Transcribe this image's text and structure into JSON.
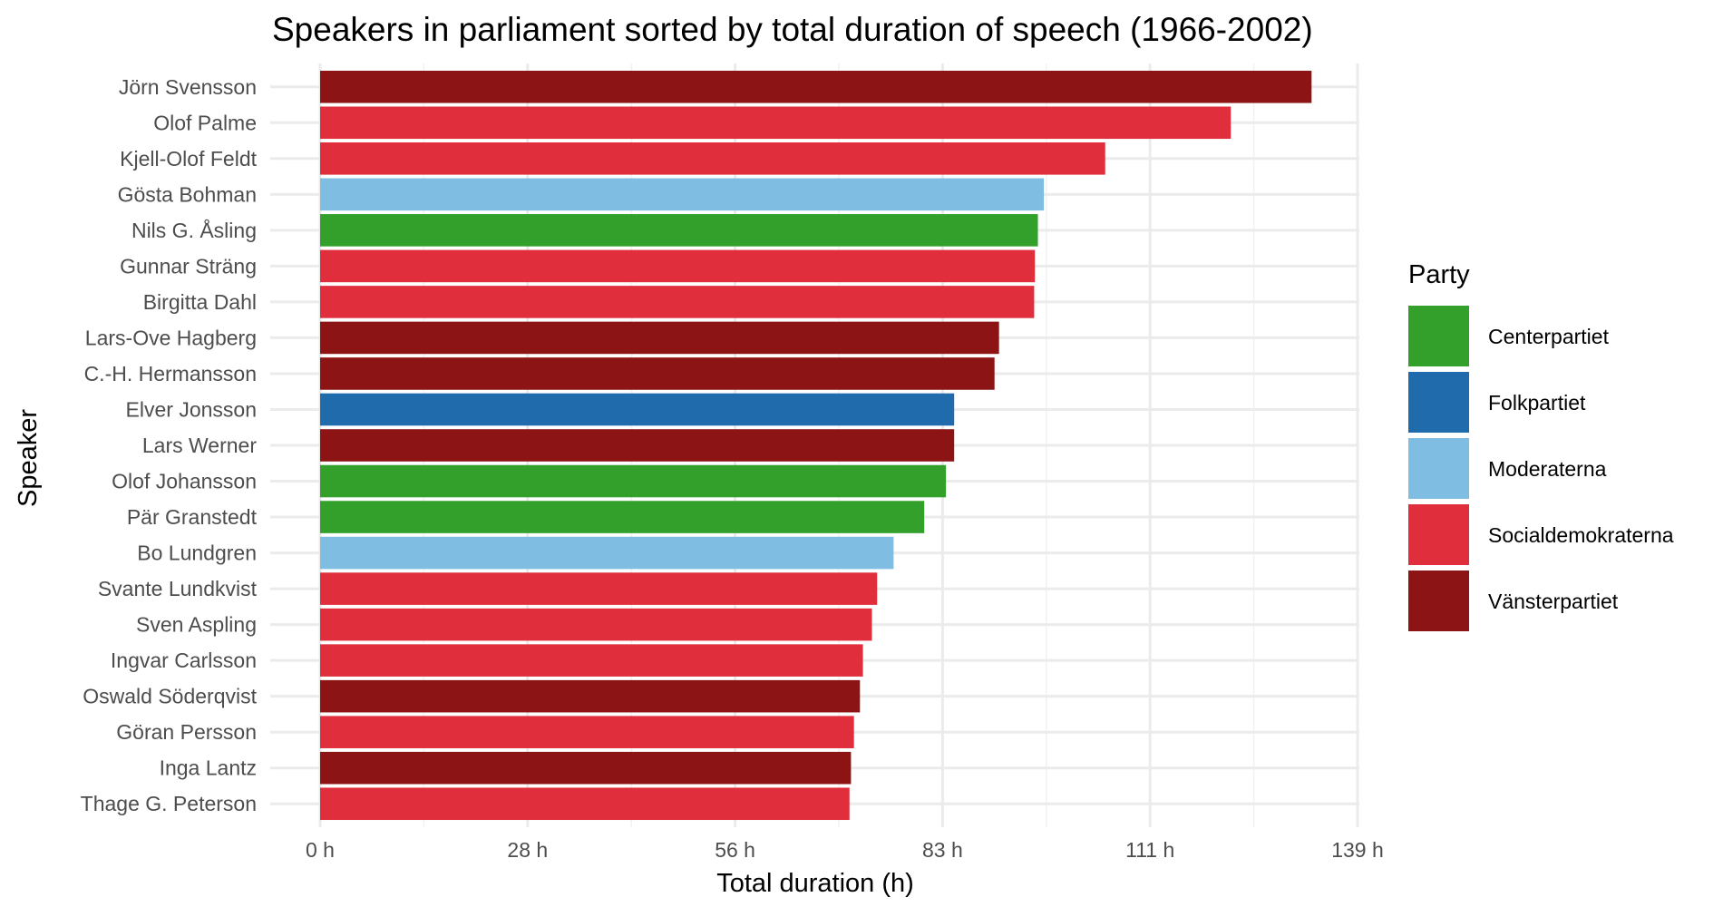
{
  "chart_data": {
    "type": "bar",
    "orientation": "horizontal",
    "title": "Speakers in parliament sorted by total duration of speech (1966-2002)",
    "xlabel": "Total duration (h)",
    "ylabel": "Speaker",
    "x_ticks": [
      "0 h",
      "28 h",
      "56 h",
      "83 h",
      "111 h",
      "139 h"
    ],
    "x_tick_values": [
      0,
      27.75,
      55.5,
      83.25,
      111,
      138.75
    ],
    "xlim": [
      0,
      138.75
    ],
    "grid": true,
    "legend": {
      "title": "Party",
      "position": "right",
      "entries": [
        {
          "name": "Centerpartiet",
          "color": "#33a02c"
        },
        {
          "name": "Folkpartiet",
          "color": "#1f6bab"
        },
        {
          "name": "Moderaterna",
          "color": "#80bde2"
        },
        {
          "name": "Socialdemokraterna",
          "color": "#e12e3c"
        },
        {
          "name": "Vänsterpartiet",
          "color": "#8c1414"
        }
      ]
    },
    "bars": [
      {
        "speaker": "Jörn Svensson",
        "party": "Vänsterpartiet",
        "value": 132.6
      },
      {
        "speaker": "Olof Palme",
        "party": "Socialdemokraterna",
        "value": 121.8
      },
      {
        "speaker": "Kjell-Olof Feldt",
        "party": "Socialdemokraterna",
        "value": 105.0
      },
      {
        "speaker": "Gösta Bohman",
        "party": "Moderaterna",
        "value": 96.8
      },
      {
        "speaker": "Nils G. Åsling",
        "party": "Centerpartiet",
        "value": 96.0
      },
      {
        "speaker": "Gunnar Sträng",
        "party": "Socialdemokraterna",
        "value": 95.6
      },
      {
        "speaker": "Birgitta Dahl",
        "party": "Socialdemokraterna",
        "value": 95.5
      },
      {
        "speaker": "Lars-Ove Hagberg",
        "party": "Vänsterpartiet",
        "value": 90.8
      },
      {
        "speaker": "C.-H. Hermansson",
        "party": "Vänsterpartiet",
        "value": 90.2
      },
      {
        "speaker": "Elver Jonsson",
        "party": "Folkpartiet",
        "value": 84.8
      },
      {
        "speaker": "Lars Werner",
        "party": "Vänsterpartiet",
        "value": 84.8
      },
      {
        "speaker": "Olof Johansson",
        "party": "Centerpartiet",
        "value": 83.7
      },
      {
        "speaker": "Pär Granstedt",
        "party": "Centerpartiet",
        "value": 80.8
      },
      {
        "speaker": "Bo Lundgren",
        "party": "Moderaterna",
        "value": 76.7
      },
      {
        "speaker": "Svante Lundkvist",
        "party": "Socialdemokraterna",
        "value": 74.5
      },
      {
        "speaker": "Sven Aspling",
        "party": "Socialdemokraterna",
        "value": 73.8
      },
      {
        "speaker": "Ingvar Carlsson",
        "party": "Socialdemokraterna",
        "value": 72.6
      },
      {
        "speaker": "Oswald Söderqvist",
        "party": "Vänsterpartiet",
        "value": 72.2
      },
      {
        "speaker": "Göran Persson",
        "party": "Socialdemokraterna",
        "value": 71.4
      },
      {
        "speaker": "Inga Lantz",
        "party": "Vänsterpartiet",
        "value": 71.0
      },
      {
        "speaker": "Thage G. Peterson",
        "party": "Socialdemokraterna",
        "value": 70.8
      }
    ]
  }
}
